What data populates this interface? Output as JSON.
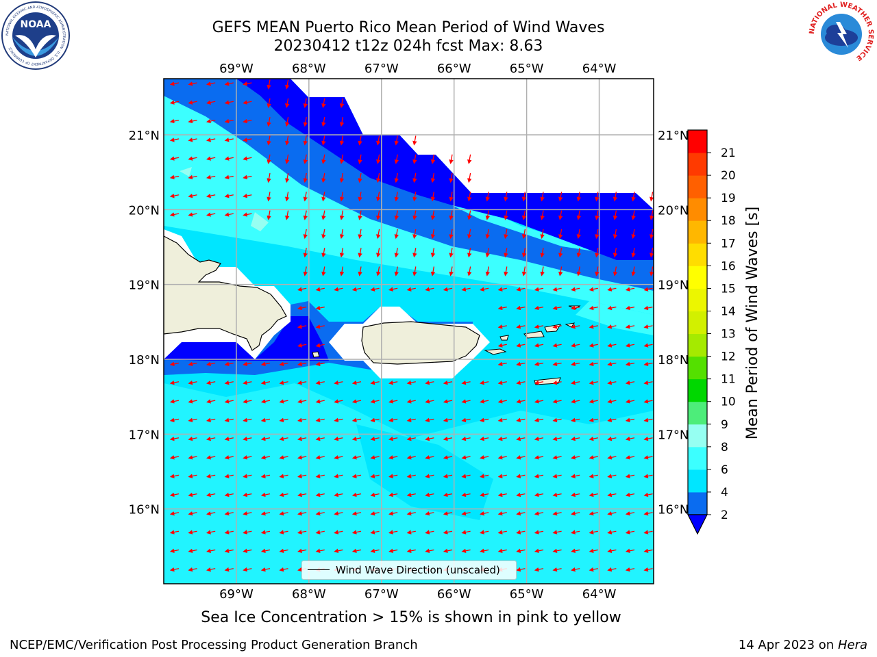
{
  "title": {
    "line1": "GEFS MEAN Puerto Rico Mean Period of Wind Waves",
    "line2": "20230412 t12z 024h fcst   Max: 8.63"
  },
  "logos": {
    "left_icon": "noaa-logo",
    "right_icon": "national-weather-service-logo",
    "left_ring_text": "NATIONAL OCEANIC AND ATMOSPHERIC ADMINISTRATION · U.S. DEPARTMENT OF COMMERCE",
    "left_center_text": "NOAA",
    "right_ring_text": "NATIONAL WEATHER SERVICE"
  },
  "map": {
    "lon_ticks": [
      "69°W",
      "68°W",
      "67°W",
      "66°W",
      "65°W",
      "64°W"
    ],
    "lat_ticks": [
      "21°N",
      "20°N",
      "19°N",
      "18°N",
      "17°N",
      "16°N"
    ],
    "lon_range": [
      -70.0,
      -63.25
    ],
    "lat_range": [
      15.0,
      21.75
    ],
    "legend_label": "Wind Wave Direction (unscaled)",
    "arrow_color": "#ff0000"
  },
  "colorbar": {
    "label": "Mean Period of Wind Waves [s]",
    "ticks": [
      "2",
      "4",
      "6",
      "8",
      "9",
      "10",
      "11",
      "12",
      "13",
      "14",
      "15",
      "16",
      "17",
      "18",
      "19",
      "20",
      "21"
    ],
    "colors": [
      "#0a6cf0",
      "#00e6ff",
      "#3cffff",
      "#96fff2",
      "#4ded7a",
      "#00d700",
      "#54e000",
      "#a5ea00",
      "#d2f000",
      "#ecf600",
      "#ffff00",
      "#ffdd00",
      "#ffb700",
      "#ff8c00",
      "#ff6000",
      "#ff3a00",
      "#ff0000"
    ],
    "under_color": "#0000ff"
  },
  "caption": "Sea Ice Concentration > 15% is shown in pink to yellow",
  "footer": {
    "left": "NCEP/EMC/Verification Post Processing Product Generation Branch",
    "date": "14 Apr 2023 on ",
    "host": "Hera"
  }
}
